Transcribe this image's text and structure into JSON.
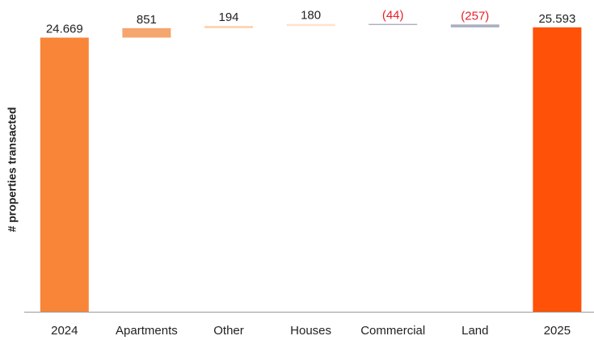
{
  "chart_data": {
    "type": "waterfall",
    "ylabel": "# properties transacted",
    "categories": [
      "2024",
      "Apartments",
      "Other",
      "Houses",
      "Commercial",
      "Land",
      "2025"
    ],
    "values": [
      24669,
      851,
      194,
      180,
      -44,
      -257,
      25593
    ],
    "value_labels": [
      "24.669",
      "851",
      "194",
      "180",
      "(44)",
      "(257)",
      "25.593"
    ],
    "measure": [
      "absolute",
      "relative",
      "relative",
      "relative",
      "relative",
      "relative",
      "total"
    ],
    "colors": [
      "#f98539",
      "#f5a56e",
      "#fdd2ad",
      "#fde3cc",
      "#8b90a4",
      "#a9afc0",
      "#ff5107"
    ],
    "negative_label_color": "#e8202a",
    "ylim": [
      0,
      26600
    ]
  }
}
